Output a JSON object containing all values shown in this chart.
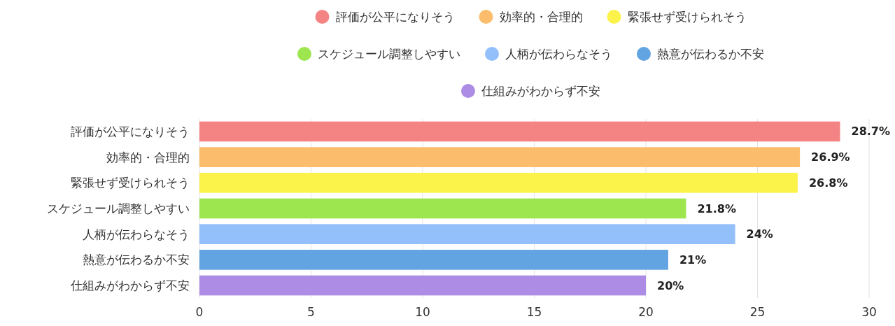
{
  "chart_data": {
    "type": "bar",
    "orientation": "horizontal",
    "stacked": true,
    "categories": [
      "評価が公平になりそう",
      "効率的・合理的",
      "緊張せず受けられそう",
      "スケジュール調整しやすい",
      "人柄が伝わらなそう",
      "熱意が伝わるか不安",
      "仕組みがわからず不安"
    ],
    "series": [
      {
        "name": "評価が公平になりそう",
        "color": "#f48484",
        "values": [
          28.7,
          null,
          null,
          null,
          null,
          null,
          null
        ],
        "value_labels": [
          "28.7%",
          null,
          null,
          null,
          null,
          null,
          null
        ]
      },
      {
        "name": "効率的・合理的",
        "color": "#fbbd6b",
        "values": [
          null,
          26.9,
          null,
          null,
          null,
          null,
          null
        ],
        "value_labels": [
          null,
          "26.9%",
          null,
          null,
          null,
          null,
          null
        ]
      },
      {
        "name": "緊張せず受けられそう",
        "color": "#fbf24a",
        "values": [
          null,
          null,
          26.8,
          null,
          null,
          null,
          null
        ],
        "value_labels": [
          null,
          null,
          "26.8%",
          null,
          null,
          null,
          null
        ]
      },
      {
        "name": "スケジュール調整しやすい",
        "color": "#9de650",
        "values": [
          null,
          null,
          null,
          21.8,
          null,
          null,
          null
        ],
        "value_labels": [
          null,
          null,
          null,
          "21.8%",
          null,
          null,
          null
        ]
      },
      {
        "name": "人柄が伝わらなそう",
        "color": "#93c0fb",
        "values": [
          null,
          null,
          null,
          null,
          24,
          null,
          null
        ],
        "value_labels": [
          null,
          null,
          null,
          null,
          "24%",
          null,
          null
        ]
      },
      {
        "name": "熱意が伝わるか不安",
        "color": "#62a4e2",
        "values": [
          null,
          null,
          null,
          null,
          null,
          21,
          null
        ],
        "value_labels": [
          null,
          null,
          null,
          null,
          null,
          "21%",
          null
        ]
      },
      {
        "name": "仕組みがわからず不安",
        "color": "#ac8ce4",
        "values": [
          null,
          null,
          null,
          null,
          null,
          null,
          20
        ],
        "value_labels": [
          null,
          null,
          null,
          null,
          null,
          null,
          "20%"
        ]
      }
    ],
    "xlim": [
      0,
      30
    ],
    "xticks": [
      0,
      5,
      10,
      15,
      20,
      25,
      30
    ],
    "grid": "x",
    "legend": "top"
  }
}
